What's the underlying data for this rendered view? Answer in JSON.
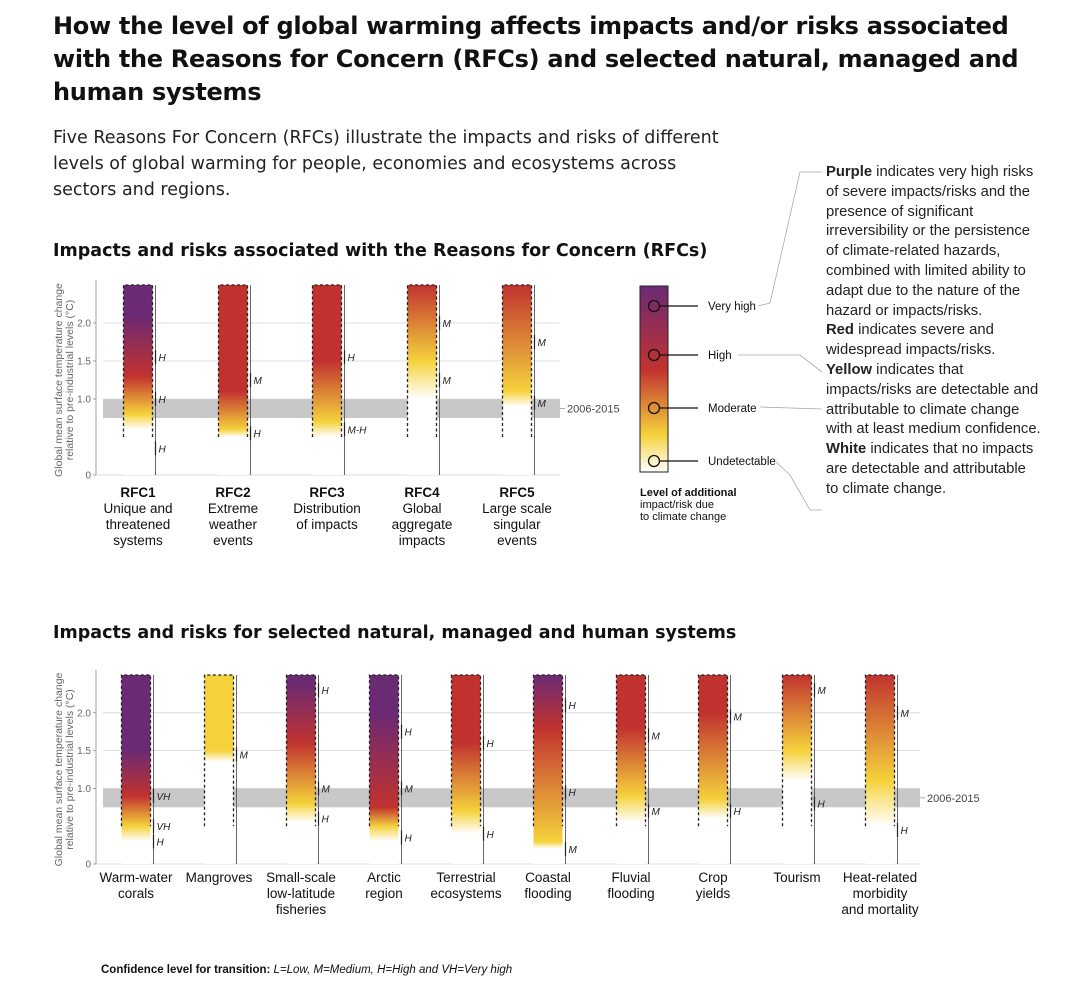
{
  "title": "How the level of global warming affects impacts and/or risks associated with the Reasons for Concern (RFCs) and selected natural, managed and human systems",
  "intro": "Five Reasons For Concern (RFCs) illustrate the impacts and risks of different levels of global warming for people, economies and ecosystems across sectors and regions.",
  "notes": [
    {
      "bold": "Purple",
      "text": " indicates very high risks of severe impacts/risks and the presence of significant irreversibility or the persistence of climate-related hazards, combined with limited ability to adapt due to the nature of the hazard or impacts/risks."
    },
    {
      "bold": "Red",
      "text": " indicates severe and widespread impacts/risks."
    },
    {
      "bold": "Yellow",
      "text": " indicates that impacts/risks are detectable and attributable to climate change with at least medium confidence."
    },
    {
      "bold": "White",
      "text": " indicates that no impacts are detectable and attributable to climate change."
    }
  ],
  "footnote": {
    "title": "Confidence level  for transition:",
    "text": " L=Low, M=Medium, H=High and VH=Very high"
  },
  "colors": {
    "white": "#ffffff",
    "yellow": "#f5d23c",
    "red": "#c1322f",
    "purple": "#6b2a74",
    "band": "#c8c8c8"
  },
  "legend": {
    "levels": [
      "Very high",
      "High",
      "Moderate",
      "Undetectable"
    ],
    "title": [
      "Level of additional",
      "impact/risk due",
      "to climate change"
    ]
  },
  "chart_data": [
    {
      "type": "bar",
      "title": "Impacts and risks associated with the Reasons for Concern (RFCs)",
      "ylabel": "Global mean surface temperature change relative to pre-industrial levels (°C)",
      "ylim": [
        0,
        2.5
      ],
      "yticks": [
        "0",
        "1.0",
        "1.5",
        "2.0"
      ],
      "reference_band": {
        "label": "2006-2015",
        "range": [
          0.75,
          1.0
        ]
      },
      "bars": [
        {
          "label": [
            "RFC1",
            "Unique and",
            "threatened",
            "systems"
          ],
          "stops": [
            [
              0.6,
              "white"
            ],
            [
              0.8,
              "yellow"
            ],
            [
              1.3,
              "red"
            ],
            [
              2.1,
              "purple"
            ]
          ],
          "conf": [
            {
              "t": 0.35,
              "text": "H"
            },
            {
              "t": 1.0,
              "text": "H"
            },
            {
              "t": 1.55,
              "text": "H"
            }
          ]
        },
        {
          "label": [
            "RFC2",
            "Extreme",
            "weather",
            "events"
          ],
          "stops": [
            [
              0.5,
              "white"
            ],
            [
              0.6,
              "yellow"
            ],
            [
              1.1,
              "red"
            ],
            [
              2.5,
              "red"
            ]
          ],
          "conf": [
            {
              "t": 0.55,
              "text": "H"
            },
            {
              "t": 1.25,
              "text": "M"
            }
          ]
        },
        {
          "label": [
            "RFC3",
            "Distribution",
            "of impacts"
          ],
          "stops": [
            [
              0.5,
              "white"
            ],
            [
              0.7,
              "yellow"
            ],
            [
              1.5,
              "red"
            ],
            [
              2.5,
              "red"
            ]
          ],
          "conf": [
            {
              "t": 0.6,
              "text": "M-H"
            },
            {
              "t": 1.55,
              "text": "H"
            }
          ]
        },
        {
          "label": [
            "RFC4",
            "Global",
            "aggregate",
            "impacts"
          ],
          "stops": [
            [
              1.0,
              "white"
            ],
            [
              1.5,
              "yellow"
            ],
            [
              2.5,
              "red"
            ]
          ],
          "conf": [
            {
              "t": 1.25,
              "text": "M"
            },
            {
              "t": 2.0,
              "text": "M"
            }
          ]
        },
        {
          "label": [
            "RFC5",
            "Large scale",
            "singular",
            "events"
          ],
          "stops": [
            [
              0.9,
              "white"
            ],
            [
              1.1,
              "yellow"
            ],
            [
              2.5,
              "red"
            ]
          ],
          "conf": [
            {
              "t": 0.95,
              "text": "M"
            },
            {
              "t": 1.75,
              "text": "M"
            }
          ]
        }
      ]
    },
    {
      "type": "bar",
      "title": "Impacts and risks for selected natural, managed and human systems",
      "ylabel": "Global mean surface temperature change relative to pre-industrial levels (°C)",
      "ylim": [
        0,
        2.5
      ],
      "yticks": [
        "0",
        "1.0",
        "1.5",
        "2.0"
      ],
      "reference_band": {
        "label": "2006-2015",
        "range": [
          0.75,
          1.0
        ]
      },
      "bars": [
        {
          "label": [
            "Warm-water",
            "corals"
          ],
          "stops": [
            [
              0.3,
              "white"
            ],
            [
              0.5,
              "yellow"
            ],
            [
              0.9,
              "red"
            ],
            [
              1.5,
              "purple"
            ]
          ],
          "conf": [
            {
              "t": 0.3,
              "text": "H"
            },
            {
              "t": 0.5,
              "text": "VH"
            },
            {
              "t": 0.9,
              "text": "VH"
            }
          ]
        },
        {
          "label": [
            "Mangroves"
          ],
          "stops": [
            [
              1.35,
              "white"
            ],
            [
              1.5,
              "yellow"
            ],
            [
              2.5,
              "yellow"
            ]
          ],
          "conf": [
            {
              "t": 1.45,
              "text": "M"
            }
          ]
        },
        {
          "label": [
            "Small-scale",
            "low-latitude",
            "fisheries"
          ],
          "stops": [
            [
              0.55,
              "white"
            ],
            [
              0.8,
              "yellow"
            ],
            [
              1.6,
              "red"
            ],
            [
              2.4,
              "purple"
            ]
          ],
          "conf": [
            {
              "t": 0.6,
              "text": "H"
            },
            {
              "t": 1.0,
              "text": "M"
            },
            {
              "t": 2.3,
              "text": "H"
            }
          ]
        },
        {
          "label": [
            "Arctic",
            "region"
          ],
          "stops": [
            [
              0.3,
              "white"
            ],
            [
              0.5,
              "yellow"
            ],
            [
              0.75,
              "red"
            ],
            [
              2.0,
              "purple"
            ]
          ],
          "conf": [
            {
              "t": 0.35,
              "text": "H"
            },
            {
              "t": 1.0,
              "text": "M"
            },
            {
              "t": 1.75,
              "text": "H"
            }
          ]
        },
        {
          "label": [
            "Terrestrial",
            "ecosystems"
          ],
          "stops": [
            [
              0.4,
              "white"
            ],
            [
              0.7,
              "yellow"
            ],
            [
              1.6,
              "red"
            ],
            [
              2.5,
              "red"
            ]
          ],
          "conf": [
            {
              "t": 0.4,
              "text": "H"
            },
            {
              "t": 1.6,
              "text": "H"
            }
          ]
        },
        {
          "label": [
            "Coastal",
            "flooding"
          ],
          "stops": [
            [
              0.2,
              "white"
            ],
            [
              0.3,
              "yellow"
            ],
            [
              1.8,
              "red"
            ],
            [
              2.5,
              "purple"
            ]
          ],
          "conf": [
            {
              "t": 0.2,
              "text": "M"
            },
            {
              "t": 0.95,
              "text": "H"
            },
            {
              "t": 2.1,
              "text": "H"
            }
          ]
        },
        {
          "label": [
            "Fluvial",
            "flooding"
          ],
          "stops": [
            [
              0.55,
              "white"
            ],
            [
              0.9,
              "yellow"
            ],
            [
              1.8,
              "red"
            ],
            [
              2.5,
              "red"
            ]
          ],
          "conf": [
            {
              "t": 0.7,
              "text": "M"
            },
            {
              "t": 1.7,
              "text": "M"
            }
          ]
        },
        {
          "label": [
            "Crop",
            "yields"
          ],
          "stops": [
            [
              0.6,
              "white"
            ],
            [
              0.85,
              "yellow"
            ],
            [
              2.0,
              "red"
            ],
            [
              2.5,
              "red"
            ]
          ],
          "conf": [
            {
              "t": 0.7,
              "text": "H"
            },
            {
              "t": 1.95,
              "text": "M"
            }
          ]
        },
        {
          "label": [
            "Tourism"
          ],
          "stops": [
            [
              1.1,
              "white"
            ],
            [
              1.5,
              "yellow"
            ],
            [
              2.5,
              "red"
            ]
          ],
          "conf": [
            {
              "t": 0.8,
              "text": "H"
            },
            {
              "t": 2.3,
              "text": "M"
            }
          ]
        },
        {
          "label": [
            "Heat-related",
            "morbidity",
            "and mortality"
          ],
          "stops": [
            [
              0.5,
              "white"
            ],
            [
              1.1,
              "yellow"
            ],
            [
              2.5,
              "red"
            ]
          ],
          "conf": [
            {
              "t": 0.45,
              "text": "H"
            },
            {
              "t": 2.0,
              "text": "M"
            }
          ]
        }
      ]
    }
  ]
}
